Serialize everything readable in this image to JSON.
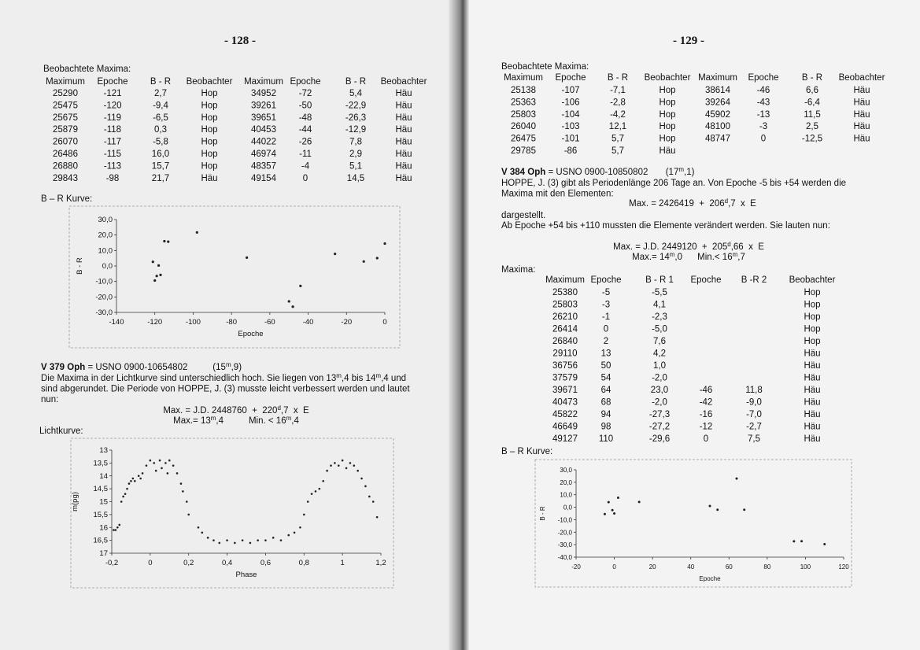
{
  "left_page": {
    "page_number": "- 128 -",
    "maxima_title": "Beobachtete Maxima:",
    "maxima_table": {
      "header": [
        "Maximum",
        "Epoche",
        "B - R",
        "Beobachter",
        "Maximum",
        "Epoche",
        "B - R",
        "Beobachter"
      ],
      "rows": [
        [
          "25290",
          "-121",
          "2,7",
          "Hop",
          "34952",
          "-72",
          "5,4",
          "Häu"
        ],
        [
          "25475",
          "-120",
          "-9,4",
          "Hop",
          "39261",
          "-50",
          "-22,9",
          "Häu"
        ],
        [
          "25675",
          "-119",
          "-6,5",
          "Hop",
          "39651",
          "-48",
          "-26,3",
          "Häu"
        ],
        [
          "25879",
          "-118",
          "0,3",
          "Hop",
          "40453",
          "-44",
          "-12,9",
          "Häu"
        ],
        [
          "26070",
          "-117",
          "-5,8",
          "Hop",
          "44022",
          "-26",
          "7,8",
          "Häu"
        ],
        [
          "26486",
          "-115",
          "16,0",
          "Hop",
          "46974",
          "-11",
          "2,9",
          "Häu"
        ],
        [
          "26880",
          "-113",
          "15,7",
          "Hop",
          "48357",
          "-4",
          "5,1",
          "Häu"
        ],
        [
          "29843",
          "-98",
          "21,7",
          "Häu",
          "49154",
          "0",
          "14,5",
          "Häu"
        ]
      ]
    },
    "star_heading": {
      "name": "V 379 Oph",
      "text": [
        " = USNO 0900-10654802          (15",
        "m",
        ",9)"
      ]
    },
    "paragraph": [
      [
        "Die Maxima in der Lichtkurve sind unterschiedlich hoch. Sie liegen von 13",
        "m",
        ",4 bis 14",
        "m",
        ",4 und"
      ],
      [
        "sind abgerundet. Die Periode von HOPPE, J. (3) musste leicht verbessert werden und lautet"
      ],
      [
        "nun:"
      ]
    ],
    "formula": [
      [
        "Max. = J.D. 2448760  +  220",
        "d",
        ",7  x  E"
      ],
      [
        "Max.= 13",
        "m",
        ",4          Min. < 16",
        "m",
        ",4"
      ]
    ]
  },
  "right_page": {
    "page_number": "- 129 -",
    "maxima_title": "Beobachtete Maxima:",
    "maxima_table": {
      "header": [
        "Maximum",
        "Epoche",
        "B - R",
        "Beobachter",
        "Maximum",
        "Epoche",
        "B - R",
        "Beobachter"
      ],
      "rows": [
        [
          "25138",
          "-107",
          "-7,1",
          "Hop",
          "38614",
          "-46",
          "6,6",
          "Häu"
        ],
        [
          "25363",
          "-106",
          "-2,8",
          "Hop",
          "39264",
          "-43",
          "-6,4",
          "Häu"
        ],
        [
          "25803",
          "-104",
          "-4,2",
          "Hop",
          "45902",
          "-13",
          "11,5",
          "Häu"
        ],
        [
          "26040",
          "-103",
          "12,1",
          "Hop",
          "48100",
          "-3",
          "2,5",
          "Häu"
        ],
        [
          "26475",
          "-101",
          "5,7",
          "Hop",
          "48747",
          "0",
          "-12,5",
          "Häu"
        ],
        [
          "29785",
          "-86",
          "5,7",
          "Häu",
          null,
          null,
          null,
          null
        ]
      ]
    },
    "star_heading": {
      "name": "V 384 Oph",
      "text": [
        " = USNO 0900-10850802       (17",
        "m",
        ",1)"
      ]
    },
    "paragraph": [
      [
        "HOPPE, J. (3) gibt als Periodenlänge 206 Tage an. Von Epoche -5 bis +54 werden die"
      ],
      [
        "Maxima mit den Elementen:"
      ]
    ],
    "formula_1": [
      "Max. = 2426419  +  206",
      "d",
      ",7  x  E"
    ],
    "paragraph_2": [
      [
        "dargestellt."
      ],
      [
        "Ab Epoche +54 bis +110 mussten die Elemente verändert werden. Sie lauten nun:"
      ]
    ],
    "formula_2": [
      [
        "Max. = J.D. 2449120  +  205",
        "d",
        ",66  x  E"
      ],
      [
        "Max.= 14",
        "m",
        ",0      Min.< 16",
        "m",
        ",7"
      ]
    ],
    "maxima_label": "Maxima:",
    "maxima_table_2": {
      "header": [
        "Maximum",
        "Epoche",
        "B - R 1",
        "Epoche",
        "B -R 2",
        "Beobachter"
      ],
      "rows": [
        [
          "25380",
          "-5",
          "-5,5",
          null,
          null,
          "Hop"
        ],
        [
          "25803",
          "-3",
          "4,1",
          null,
          null,
          "Hop"
        ],
        [
          "26210",
          "-1",
          "-2,3",
          null,
          null,
          "Hop"
        ],
        [
          "26414",
          "0",
          "-5,0",
          null,
          null,
          "Hop"
        ],
        [
          "26840",
          "2",
          "7,6",
          null,
          null,
          "Hop"
        ],
        [
          "29110",
          "13",
          "4,2",
          null,
          null,
          "Häu"
        ],
        [
          "36756",
          "50",
          "1,0",
          null,
          null,
          "Häu"
        ],
        [
          "37579",
          "54",
          "-2,0",
          null,
          null,
          "Häu"
        ],
        [
          "39671",
          "64",
          "23,0",
          "-46",
          "11,8",
          "Häu"
        ],
        [
          "40473",
          "68",
          "-2,0",
          "-42",
          "-9,0",
          "Häu"
        ],
        [
          "45822",
          "94",
          "-27,3",
          "-16",
          "-7,0",
          "Häu"
        ],
        [
          "46649",
          "98",
          "-27,2",
          "-12",
          "-2,7",
          "Häu"
        ],
        [
          "49127",
          "110",
          "-29,6",
          "0",
          "7,5",
          "Häu"
        ]
      ]
    }
  },
  "chart_data": [
    {
      "type": "scatter",
      "title": "B – R Kurve:",
      "x_label": "Epoche",
      "y_label": "B - R",
      "color": "#222222",
      "x": [
        -121,
        -120,
        -119,
        -118,
        -117,
        -115,
        -113,
        -98,
        -72,
        -50,
        -48,
        -44,
        -26,
        -11,
        -4,
        0
      ],
      "values": [
        2.7,
        -9.4,
        -6.5,
        0.3,
        -5.8,
        16.0,
        15.7,
        21.7,
        5.4,
        -22.9,
        -26.3,
        -12.9,
        7.8,
        2.9,
        5.1,
        14.5
      ],
      "xlim": [
        -140,
        0
      ],
      "ylim": [
        -30,
        30
      ],
      "xticks": [
        -140,
        -120,
        -100,
        -80,
        -60,
        -40,
        -20,
        0
      ],
      "yticks": [
        {
          "value": 30,
          "label": "30,0"
        },
        {
          "value": 20,
          "label": "20,0"
        },
        {
          "value": 10,
          "label": "10,0"
        },
        {
          "value": 0,
          "label": "0,0"
        },
        {
          "value": -10,
          "label": "-10,0"
        },
        {
          "value": -20,
          "label": "-20,0"
        },
        {
          "value": -30,
          "label": "-30,0"
        }
      ]
    },
    {
      "type": "scatter",
      "title": "Lichtkurve:",
      "x_label": "Phase",
      "y_label": "m(pg)",
      "color": "#222222",
      "x": [
        -0.19,
        -0.18,
        -0.17,
        -0.16,
        -0.15,
        -0.14,
        -0.13,
        -0.12,
        -0.11,
        -0.1,
        -0.09,
        -0.08,
        -0.06,
        -0.05,
        -0.04,
        -0.02,
        0.0,
        0.02,
        0.03,
        0.05,
        0.06,
        0.08,
        0.09,
        0.1,
        0.12,
        0.14,
        0.16,
        0.17,
        0.19,
        0.2,
        0.25,
        0.27,
        0.3,
        0.33,
        0.36,
        0.4,
        0.44,
        0.48,
        0.52,
        0.56,
        0.6,
        0.64,
        0.68,
        0.72,
        0.75,
        0.78,
        0.8,
        0.82,
        0.84,
        0.86,
        0.88,
        0.9,
        0.92,
        0.94,
        0.96,
        0.98,
        1.0,
        1.02,
        1.04,
        1.06,
        1.08,
        1.1,
        1.12,
        1.14,
        1.16,
        1.18
      ],
      "values": [
        16.1,
        16.1,
        16.0,
        15.9,
        15.0,
        14.8,
        14.7,
        14.5,
        14.3,
        14.2,
        14.1,
        14.2,
        14.0,
        14.1,
        13.9,
        13.6,
        13.4,
        13.5,
        13.8,
        13.4,
        13.7,
        13.5,
        13.9,
        13.4,
        13.6,
        13.9,
        14.3,
        14.6,
        15.0,
        15.5,
        16.0,
        16.2,
        16.4,
        16.5,
        16.6,
        16.5,
        16.6,
        16.5,
        16.6,
        16.5,
        16.5,
        16.4,
        16.5,
        16.3,
        16.2,
        16.0,
        15.5,
        15.0,
        14.7,
        14.6,
        14.5,
        14.2,
        13.8,
        13.6,
        13.5,
        13.6,
        13.4,
        13.7,
        13.5,
        13.6,
        13.8,
        14.1,
        14.4,
        14.8,
        15.0,
        15.6
      ],
      "xlim": [
        -0.2,
        1.2
      ],
      "ylim": [
        17,
        13
      ],
      "xticks": [
        {
          "value": -0.2,
          "label": "-0,2"
        },
        0,
        {
          "value": 0.2,
          "label": "0,2"
        },
        {
          "value": 0.4,
          "label": "0,4"
        },
        {
          "value": 0.6,
          "label": "0,6"
        },
        {
          "value": 0.8,
          "label": "0,8"
        },
        1,
        {
          "value": 1.2,
          "label": "1,2"
        }
      ],
      "yticks": [
        13,
        {
          "value": 13.5,
          "label": "13,5"
        },
        14,
        {
          "value": 14.5,
          "label": "14,5"
        },
        15,
        {
          "value": 15.5,
          "label": "15,5"
        },
        16,
        {
          "value": 16.5,
          "label": "16,5"
        },
        17
      ]
    },
    {
      "type": "scatter",
      "title": "B – R Kurve:",
      "x_label": "Epoche",
      "y_label": "B - R",
      "color": "#222222",
      "x": [
        -5,
        -3,
        -1,
        0,
        2,
        13,
        50,
        54,
        64,
        68,
        94,
        98,
        110
      ],
      "values": [
        -5.5,
        4.1,
        -2.3,
        -5.0,
        7.6,
        4.2,
        1.0,
        -2.0,
        23.0,
        -2.0,
        -27.3,
        -27.2,
        -29.6
      ],
      "xlim": [
        -20,
        120
      ],
      "ylim": [
        -40,
        30
      ],
      "xticks": [
        -20,
        0,
        20,
        40,
        60,
        80,
        100,
        120
      ],
      "yticks": [
        {
          "value": 30,
          "label": "30,0"
        },
        {
          "value": 20,
          "label": "20,0"
        },
        {
          "value": 10,
          "label": "10,0"
        },
        {
          "value": 0,
          "label": "0,0"
        },
        {
          "value": -10,
          "label": "-10,0"
        },
        {
          "value": -20,
          "label": "-20,0"
        },
        {
          "value": -30,
          "label": "-30,0"
        },
        {
          "value": -40,
          "label": "-40,0"
        }
      ]
    }
  ]
}
